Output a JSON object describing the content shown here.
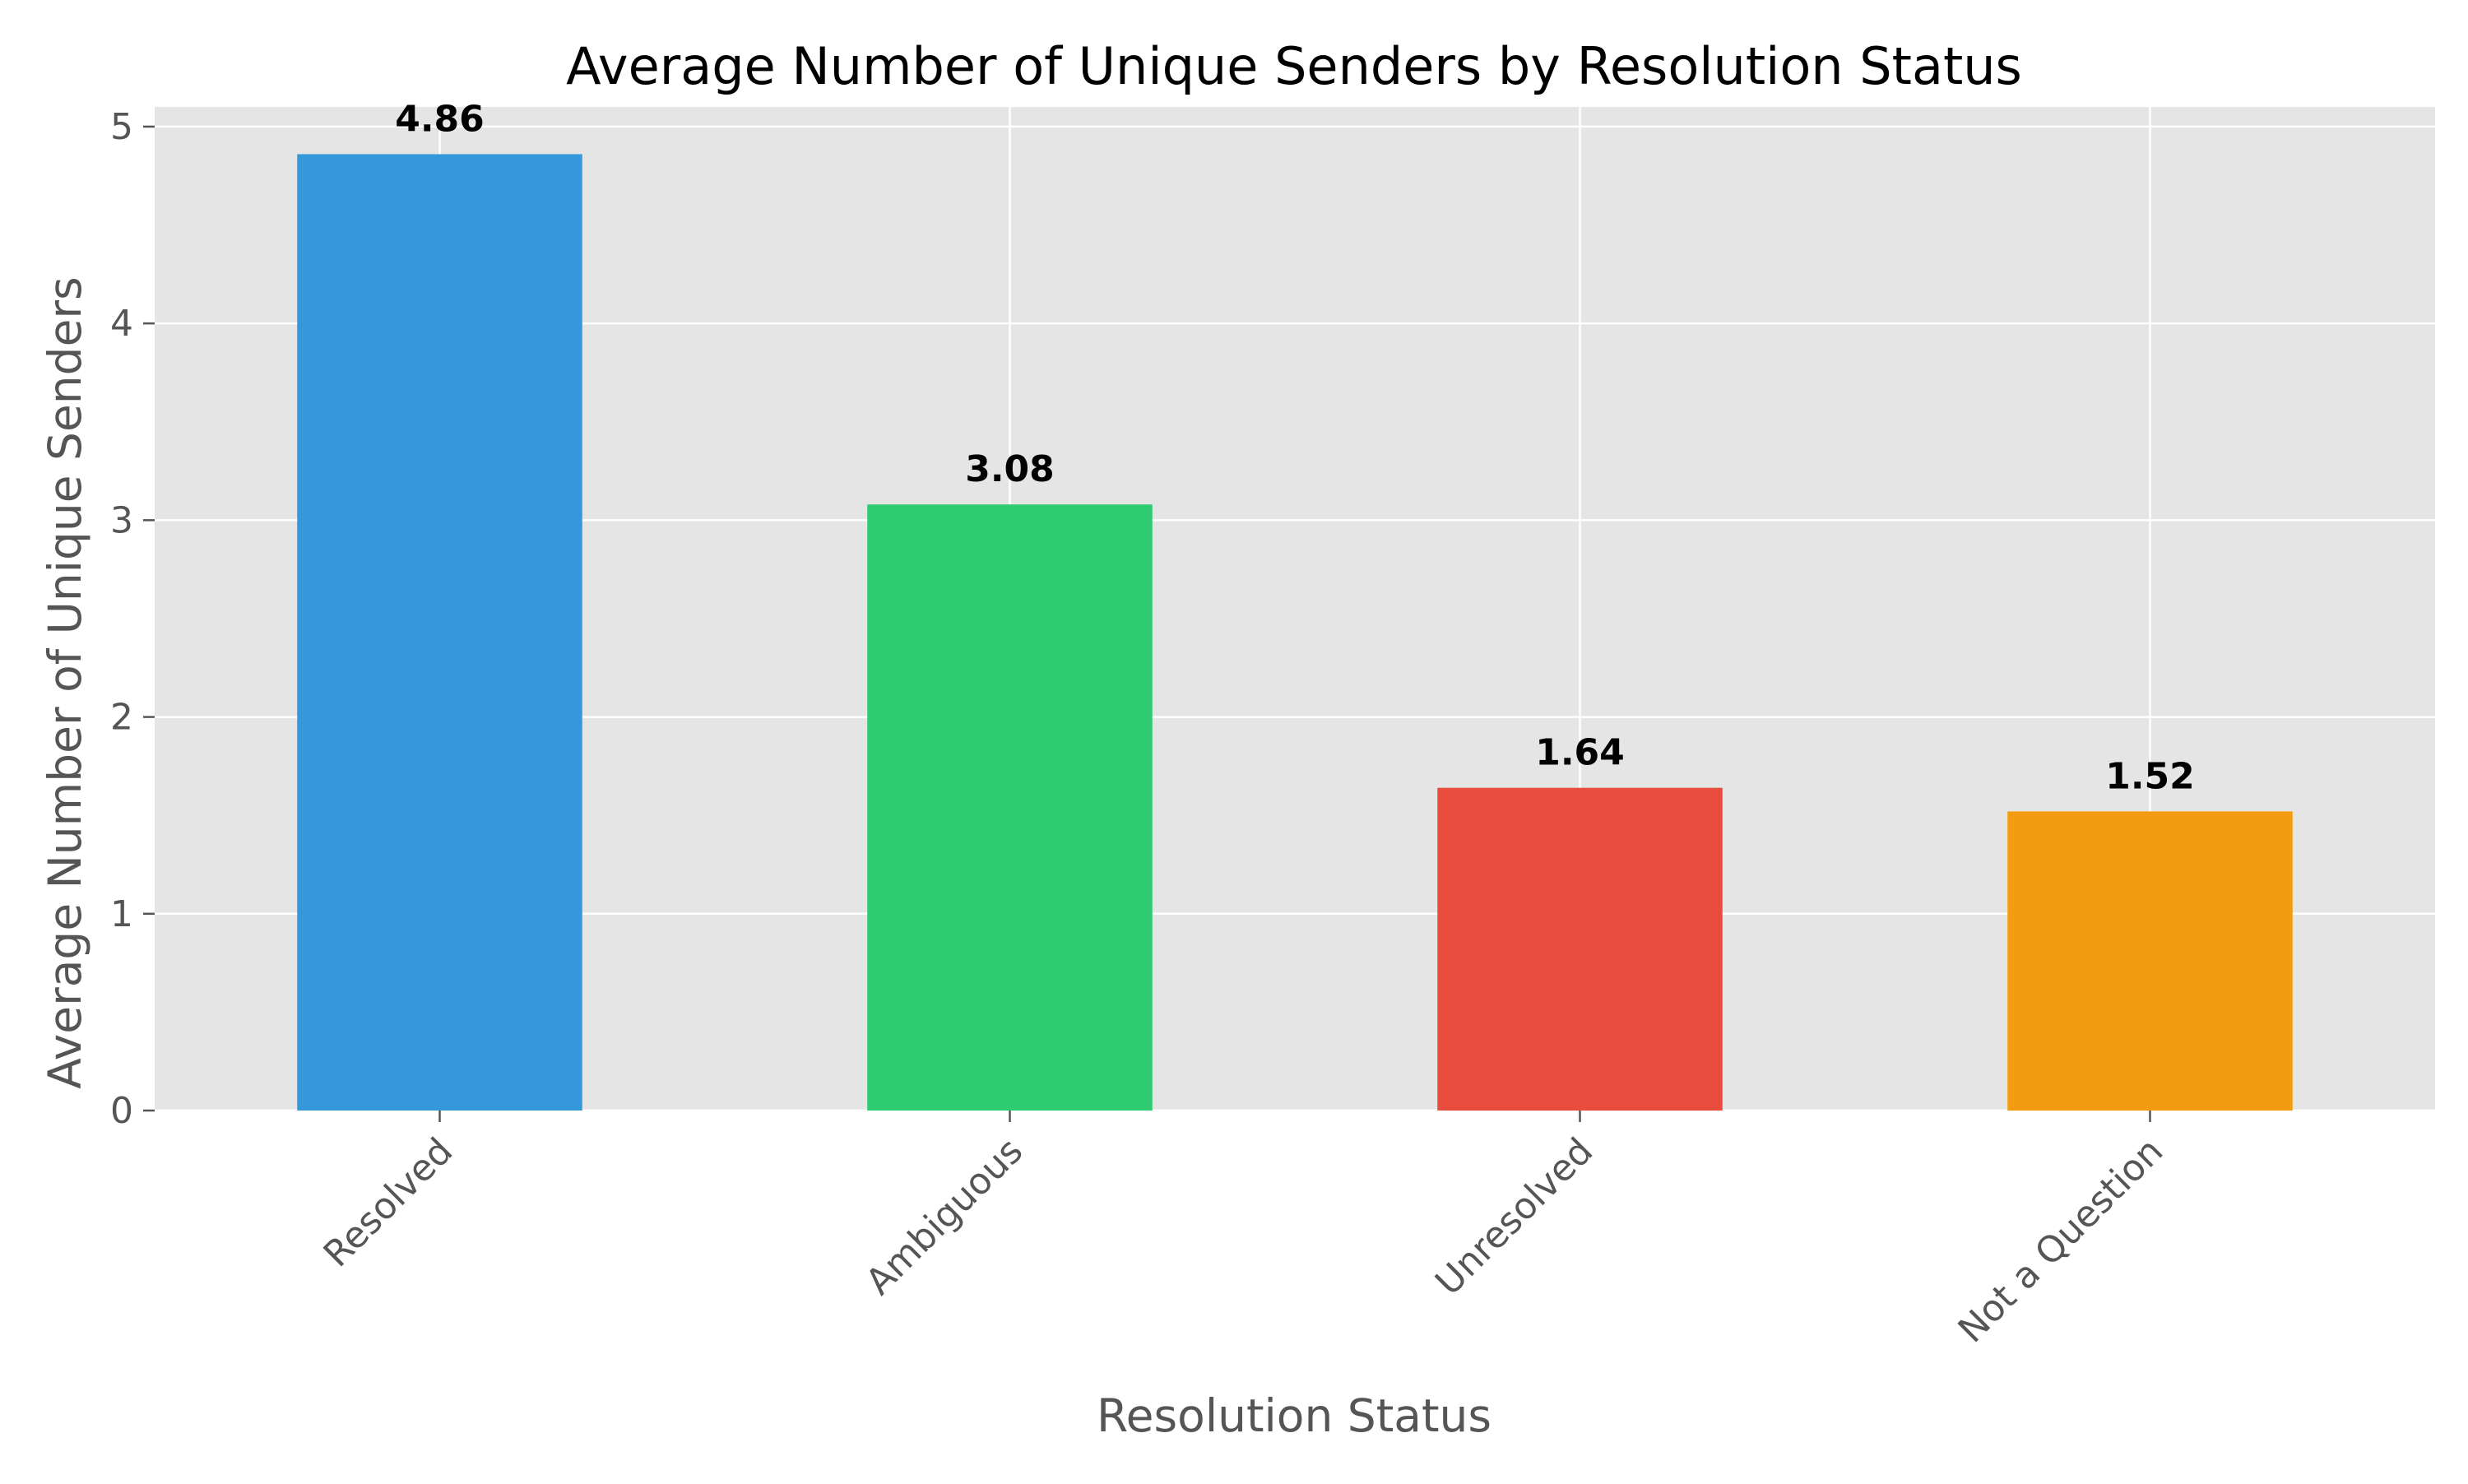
{
  "chart_data": {
    "type": "bar",
    "title": "Average Number of Unique Senders by Resolution Status",
    "xlabel": "Resolution Status",
    "ylabel": "Average Number of Unique Senders",
    "categories": [
      "Resolved",
      "Ambiguous",
      "Unresolved",
      "Not a Question"
    ],
    "values": [
      4.86,
      3.08,
      1.64,
      1.52
    ],
    "value_labels": [
      "4.86",
      "3.08",
      "1.64",
      "1.52"
    ],
    "colors": [
      "#3498db",
      "#2ecc71",
      "#e74c3c",
      "#f39c12"
    ],
    "ylim": [
      0,
      5.1
    ],
    "yticks": [
      0,
      1,
      2,
      3,
      4,
      5
    ],
    "grid": true,
    "plot_background": "#e5e5e5",
    "grid_color": "#ffffff"
  }
}
